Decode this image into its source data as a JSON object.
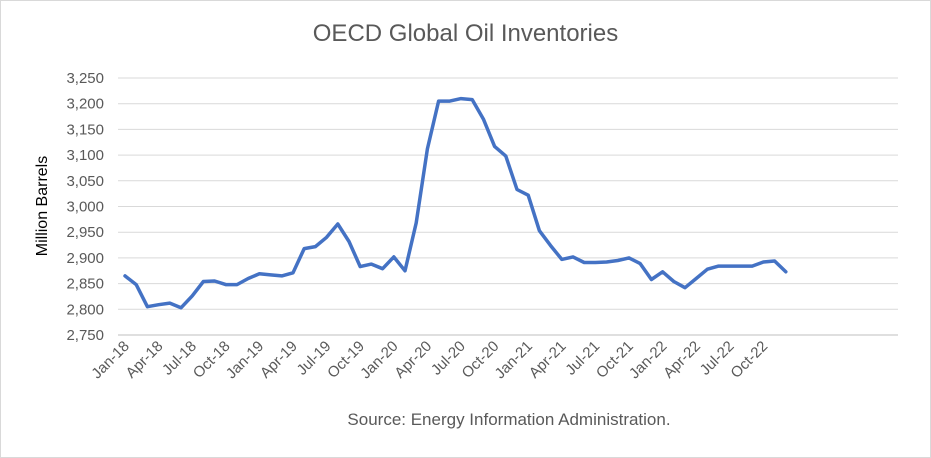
{
  "chart_data": {
    "type": "line",
    "title": "OECD Global Oil Inventories",
    "ylabel": "Million Barrels",
    "xlabel": "",
    "source": "Source: Energy Information Administration.",
    "ylim": [
      2750,
      3250
    ],
    "y_ticks": [
      "2,750",
      "2,800",
      "2,850",
      "2,900",
      "2,950",
      "3,000",
      "3,050",
      "3,100",
      "3,150",
      "3,200",
      "3,250"
    ],
    "x_tick_labels": [
      "Jan-18",
      "Apr-18",
      "Jul-18",
      "Oct-18",
      "Jan-19",
      "Apr-19",
      "Jul-19",
      "Oct-19",
      "Jan-20",
      "Apr-20",
      "Jul-20",
      "Oct-20",
      "Jan-21",
      "Apr-21",
      "Jul-21",
      "Oct-21",
      "Jan-22",
      "Apr-22",
      "Jul-22",
      "Oct-22"
    ],
    "grid": true,
    "line_color": "#4472c4",
    "series": [
      {
        "x": [
          "Jan-18",
          "Feb-18",
          "Mar-18",
          "Apr-18",
          "May-18",
          "Jun-18",
          "Jul-18",
          "Aug-18",
          "Sep-18",
          "Oct-18",
          "Nov-18",
          "Dec-18",
          "Jan-19",
          "Feb-19",
          "Mar-19",
          "Apr-19",
          "May-19",
          "Jun-19",
          "Jul-19",
          "Aug-19",
          "Sep-19",
          "Oct-19",
          "Nov-19",
          "Dec-19",
          "Jan-20",
          "Feb-20",
          "Mar-20",
          "Apr-20",
          "May-20",
          "Jun-20",
          "Jul-20",
          "Aug-20",
          "Sep-20",
          "Oct-20",
          "Nov-20",
          "Dec-20",
          "Jan-21",
          "Feb-21",
          "Mar-21",
          "Apr-21",
          "May-21",
          "Jun-21",
          "Jul-21",
          "Aug-21",
          "Sep-21",
          "Oct-21",
          "Nov-21",
          "Dec-21",
          "Jan-22",
          "Feb-22",
          "Mar-22",
          "Apr-22",
          "May-22",
          "Jun-22",
          "Jul-22",
          "Aug-22",
          "Sep-22",
          "Oct-22",
          "Nov-22",
          "Dec-22"
        ],
        "values": [
          2865,
          2848,
          2805,
          2809,
          2812,
          2803,
          2826,
          2854,
          2855,
          2848,
          2848,
          2860,
          2869,
          2867,
          2865,
          2871,
          2918,
          2922,
          2940,
          2966,
          2932,
          2883,
          2888,
          2879,
          2902,
          2875,
          2968,
          3112,
          3205,
          3205,
          3210,
          3208,
          3170,
          3117,
          3098,
          3033,
          3022,
          2953,
          2924,
          2897,
          2902,
          2891,
          2891,
          2892,
          2895,
          2900,
          2889,
          2858,
          2873,
          2854,
          2842,
          2860,
          2878,
          2884,
          2884,
          2884,
          2884,
          2892,
          2894,
          2873
        ]
      }
    ]
  }
}
